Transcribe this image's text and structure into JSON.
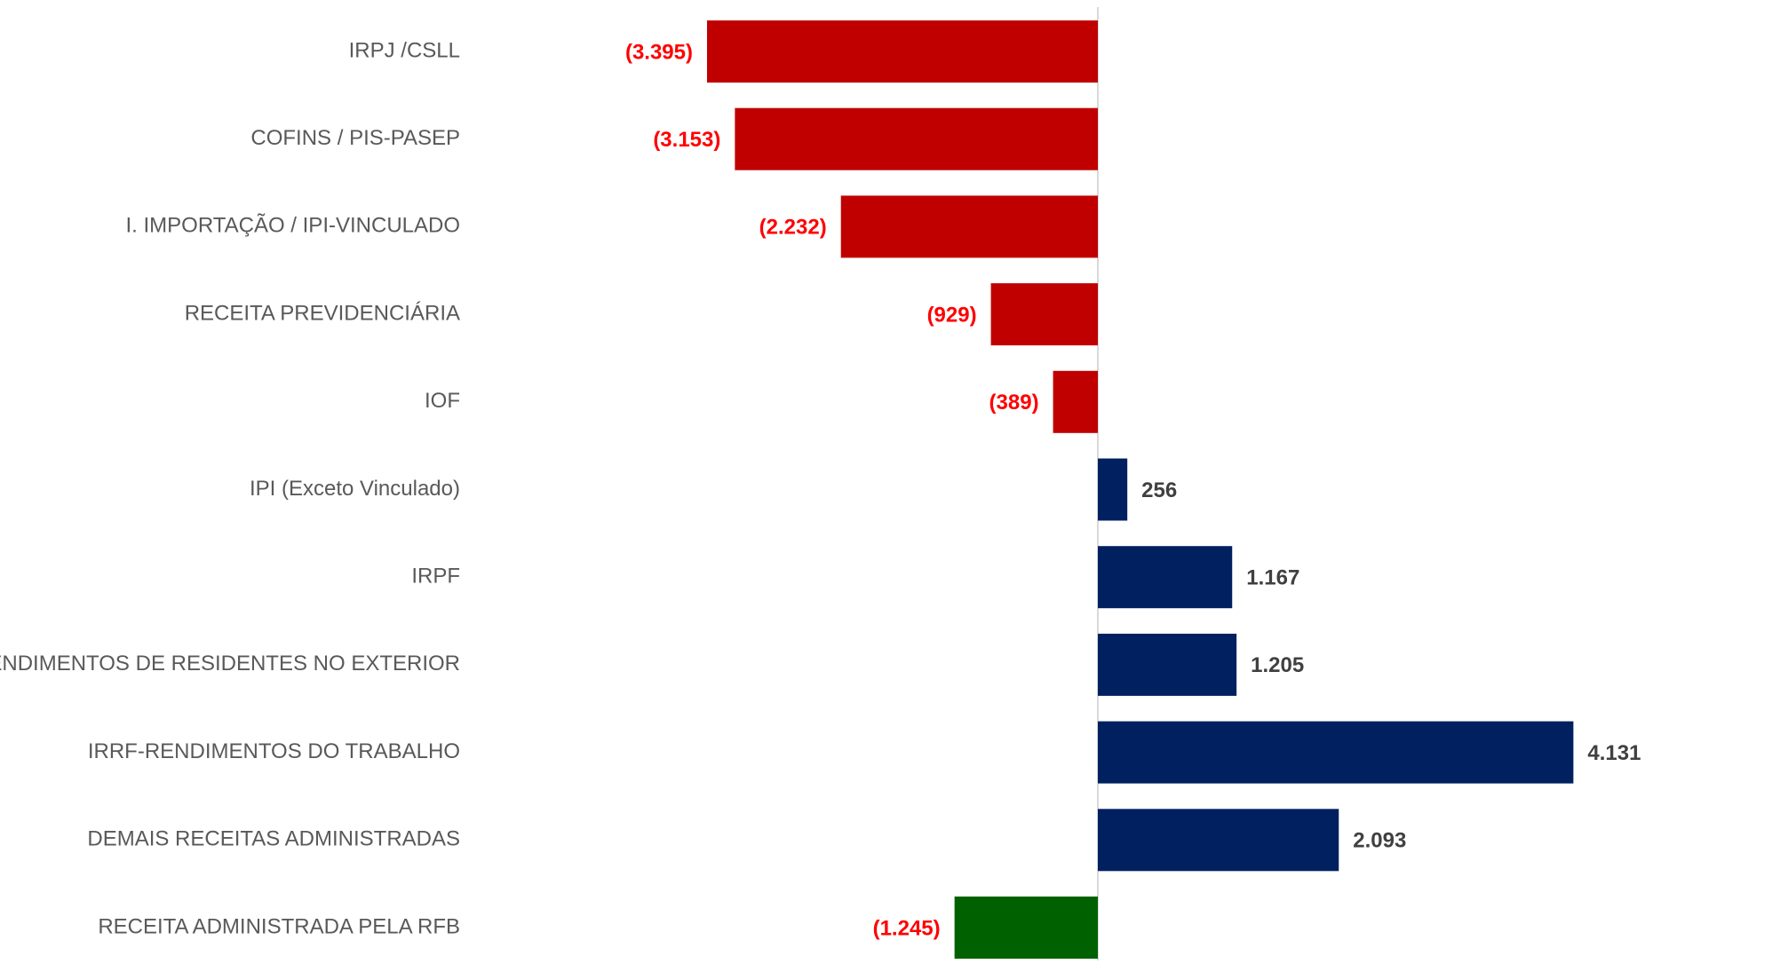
{
  "chart_data": {
    "type": "bar",
    "orientation": "horizontal",
    "title": "",
    "xlabel": "",
    "ylabel": "",
    "xlim": [
      -3600,
      4300
    ],
    "grid": false,
    "legend": "none",
    "categories": [
      "IRPJ /CSLL",
      "COFINS / PIS-PASEP",
      "I. IMPORTAÇÃO / IPI-VINCULADO",
      "RECEITA PREVIDENCIÁRIA",
      "IOF",
      "IPI (Exceto Vinculado)",
      "IRPF",
      "IRRF-RENDIMENTOS DE RESIDENTES NO EXTERIOR",
      "IRRF-RENDIMENTOS DO TRABALHO",
      "DEMAIS RECEITAS ADMINISTRADAS",
      "RECEITA ADMINISTRADA PELA RFB"
    ],
    "values": [
      -3395,
      -3153,
      -2232,
      -929,
      -389,
      256,
      1167,
      1205,
      4131,
      2093,
      -1245
    ],
    "value_labels": [
      "(3.395)",
      "(3.153)",
      "(2.232)",
      "(929)",
      "(389)",
      "256",
      "1.167",
      "1.205",
      "4.131",
      "2.093",
      "(1.245)"
    ],
    "bar_colors": [
      "#c00000",
      "#c00000",
      "#c00000",
      "#c00000",
      "#c00000",
      "#002060",
      "#002060",
      "#002060",
      "#002060",
      "#002060",
      "#006100"
    ],
    "colors": {
      "negative_bar": "#c00000",
      "positive_bar": "#002060",
      "total_bar": "#006100",
      "negative_label": "#ff0000",
      "positive_label": "#404040",
      "category_label": "#595959",
      "zero_axis": "#d9d9d9"
    }
  }
}
